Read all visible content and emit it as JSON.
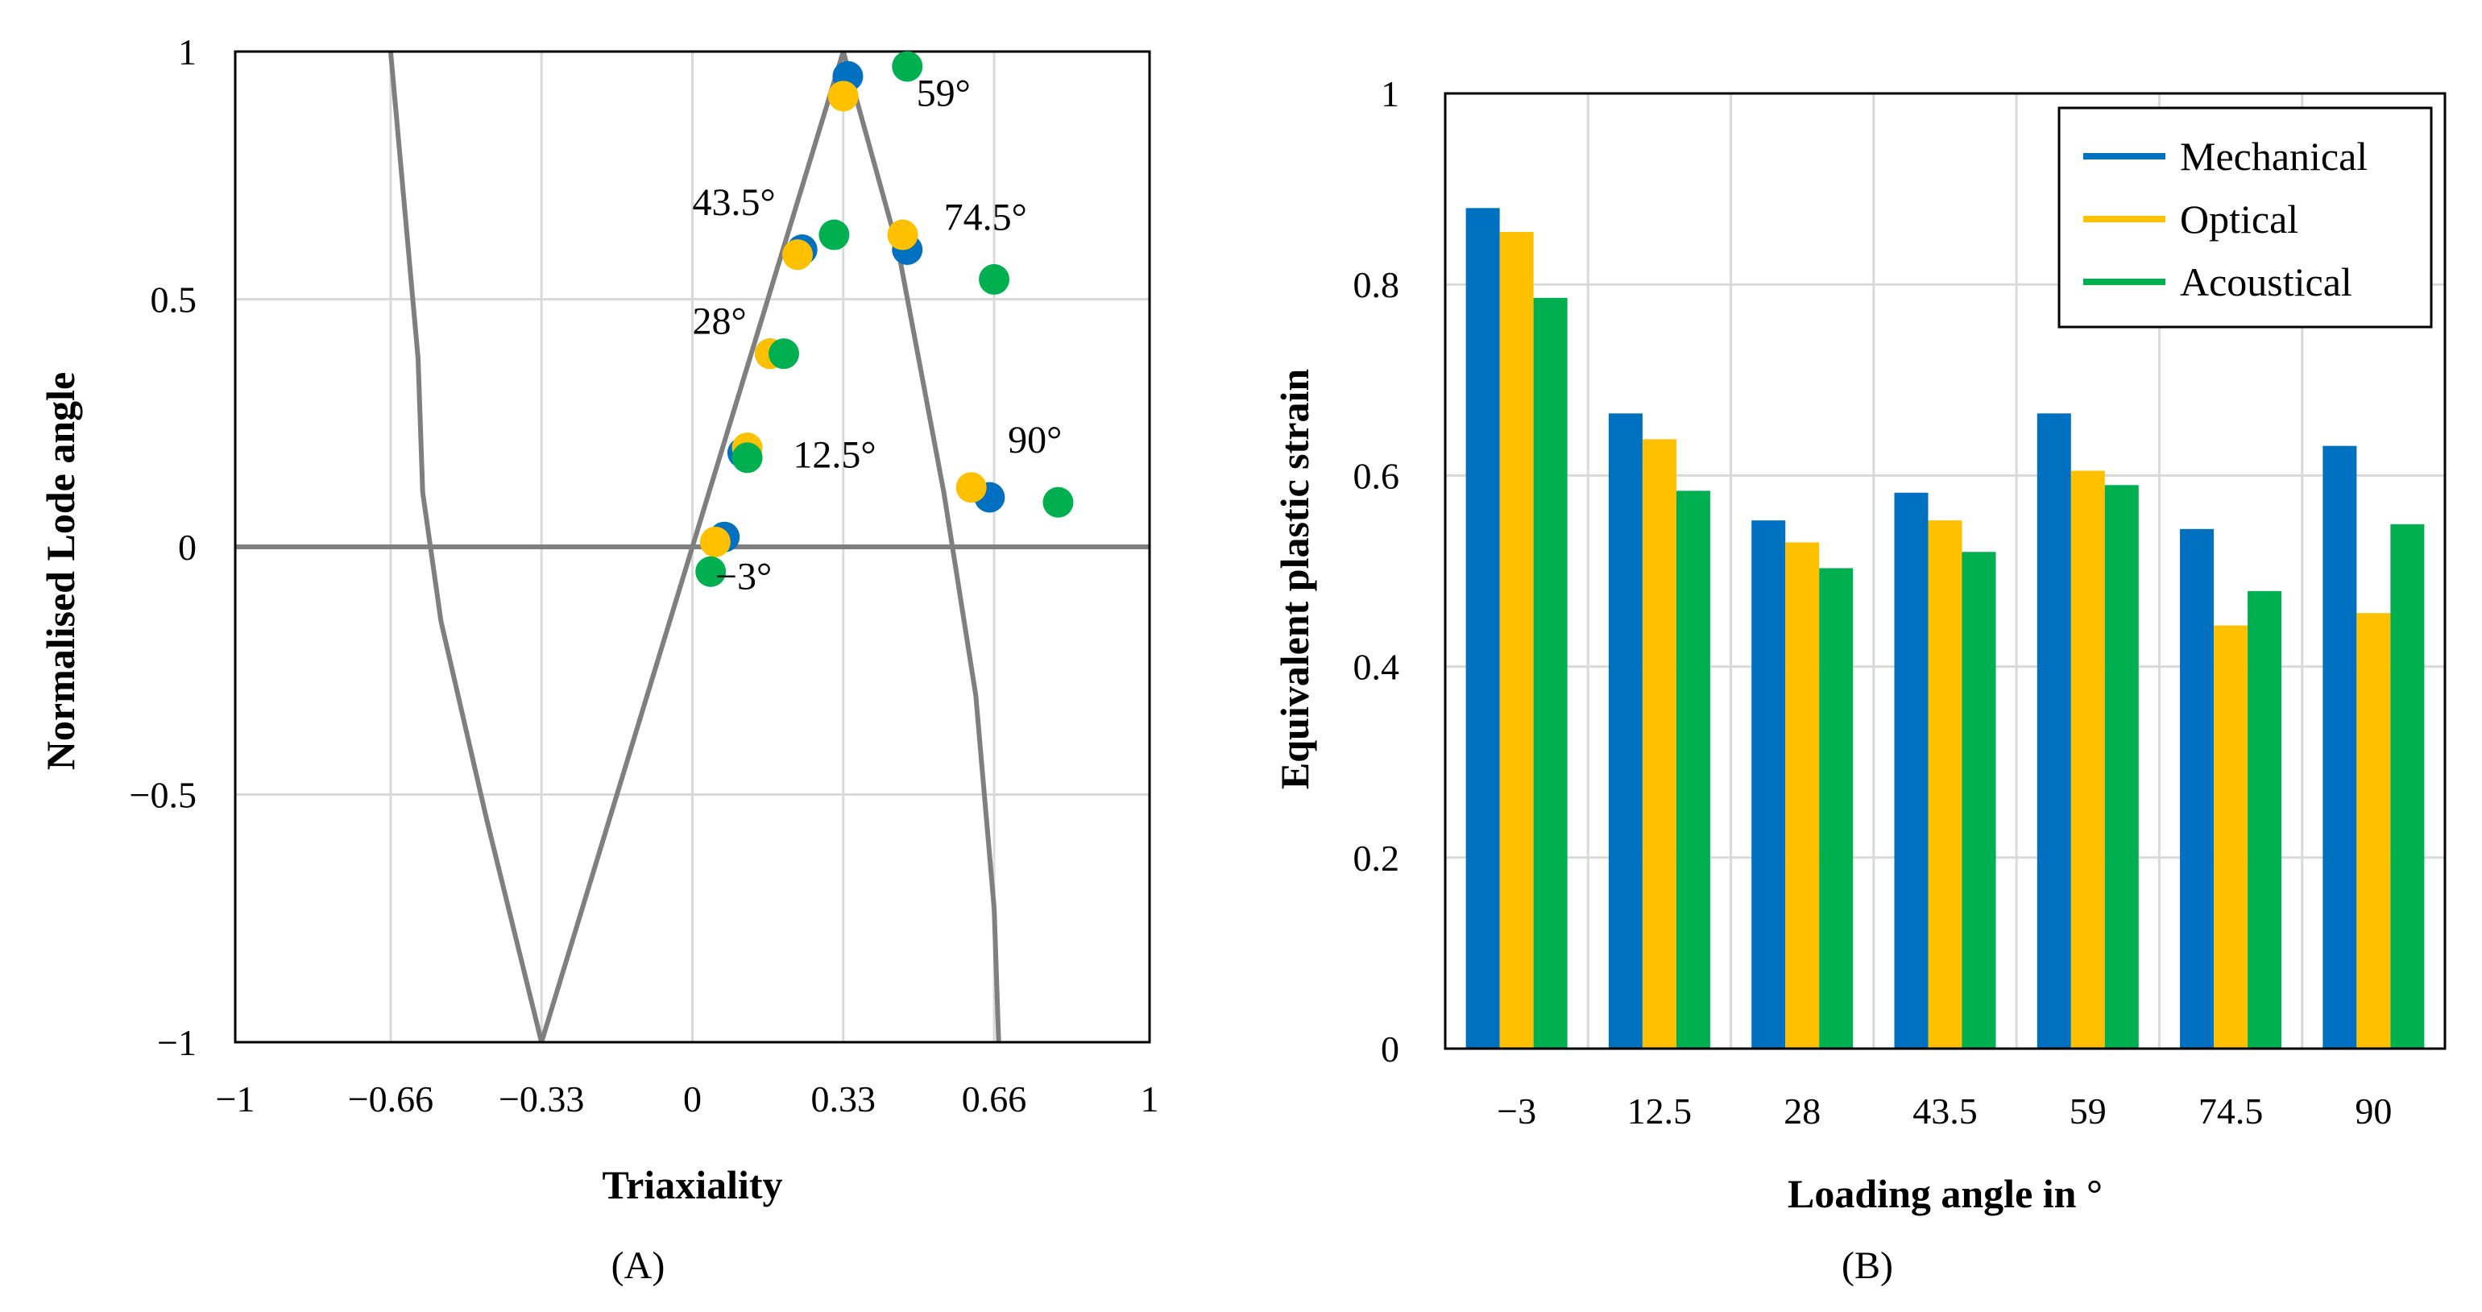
{
  "chart_data": [
    {
      "id": "A",
      "type": "scatter",
      "panel_label": "(A)",
      "xlabel": "Triaxiality",
      "ylabel": "Normalised Lode angle",
      "xlim": [
        -1,
        1
      ],
      "ylim": [
        -1,
        1
      ],
      "xticks": [
        -1,
        -0.66,
        -0.33,
        0,
        0.33,
        0.66,
        1
      ],
      "xtick_labels": [
        "−1",
        "−0.66",
        "−0.33",
        "0",
        "0.33",
        "0.66",
        "1"
      ],
      "yticks": [
        1,
        0.5,
        0,
        -0.5,
        -1
      ],
      "ytick_labels": [
        "1",
        "0.5",
        "0",
        "−0.5",
        "−1"
      ],
      "grid": true,
      "boundary_curves": [
        {
          "name": "plane-stress-left",
          "color": "#7f7f7f",
          "points": [
            [
              -0.66,
              1.0
            ],
            [
              -0.6,
              0.38
            ],
            [
              -0.59,
              0.11
            ],
            [
              -0.55,
              -0.15
            ],
            [
              -0.45,
              -0.55
            ],
            [
              -0.33,
              -1.0
            ]
          ]
        },
        {
          "name": "plane-stress-center",
          "color": "#7f7f7f",
          "points": [
            [
              -0.33,
              -1.0
            ],
            [
              0.0,
              0.0
            ],
            [
              0.33,
              1.0
            ]
          ]
        },
        {
          "name": "plane-stress-right",
          "color": "#7f7f7f",
          "points": [
            [
              0.33,
              1.0
            ],
            [
              0.45,
              0.6
            ],
            [
              0.55,
              0.11
            ],
            [
              0.62,
              -0.3
            ],
            [
              0.66,
              -0.73
            ],
            [
              0.67,
              -1.0
            ]
          ]
        }
      ],
      "zero_line": true,
      "series": [
        {
          "name": "Mechanical",
          "color": "#0070c0",
          "points": [
            [
              0.07,
              0.02
            ],
            [
              0.11,
              0.19
            ],
            [
              0.17,
              0.39
            ],
            [
              0.24,
              0.6
            ],
            [
              0.34,
              0.95
            ],
            [
              0.47,
              0.6
            ],
            [
              0.65,
              0.1
            ]
          ]
        },
        {
          "name": "Optical",
          "color": "#ffc000",
          "points": [
            [
              0.05,
              0.01
            ],
            [
              0.12,
              0.2
            ],
            [
              0.17,
              0.39
            ],
            [
              0.23,
              0.59
            ],
            [
              0.33,
              0.91
            ],
            [
              0.46,
              0.63
            ],
            [
              0.61,
              0.12
            ]
          ]
        },
        {
          "name": "Acoustical",
          "color": "#00b050",
          "points": [
            [
              0.04,
              -0.05
            ],
            [
              0.12,
              0.18
            ],
            [
              0.2,
              0.39
            ],
            [
              0.31,
              0.63
            ],
            [
              0.47,
              0.97
            ],
            [
              0.66,
              0.54
            ],
            [
              0.8,
              0.09
            ]
          ]
        }
      ],
      "annotations": [
        {
          "text": "−3°",
          "x": 0.05,
          "y": -0.085
        },
        {
          "text": "12.5°",
          "x": 0.22,
          "y": 0.16
        },
        {
          "text": "28°",
          "x": 0.0,
          "y": 0.43
        },
        {
          "text": "43.5°",
          "x": 0.0,
          "y": 0.67
        },
        {
          "text": "59°",
          "x": 0.49,
          "y": 0.89
        },
        {
          "text": "74.5°",
          "x": 0.55,
          "y": 0.64
        },
        {
          "text": "90°",
          "x": 0.69,
          "y": 0.19
        }
      ]
    },
    {
      "id": "B",
      "type": "bar",
      "panel_label": "(B)",
      "xlabel": "Loading angle in °",
      "ylabel": "Equivalent plastic strain",
      "categories": [
        "−3",
        "12.5",
        "28",
        "43.5",
        "59",
        "74.5",
        "90"
      ],
      "ylim": [
        0,
        1
      ],
      "yticks": [
        0,
        0.2,
        0.4,
        0.6,
        0.8,
        1
      ],
      "ytick_labels": [
        "0",
        "0.2",
        "0.4",
        "0.6",
        "0.8",
        "1"
      ],
      "grid": true,
      "legend_position": "top-right",
      "series": [
        {
          "name": "Mechanical",
          "color": "#0070c0",
          "values": [
            0.88,
            0.665,
            0.553,
            0.582,
            0.665,
            0.544,
            0.631
          ]
        },
        {
          "name": "Optical",
          "color": "#ffc000",
          "values": [
            0.855,
            0.638,
            0.53,
            0.553,
            0.605,
            0.443,
            0.456
          ]
        },
        {
          "name": "Acoustical",
          "color": "#00b050",
          "values": [
            0.786,
            0.584,
            0.503,
            0.52,
            0.59,
            0.479,
            0.549
          ]
        }
      ]
    }
  ]
}
